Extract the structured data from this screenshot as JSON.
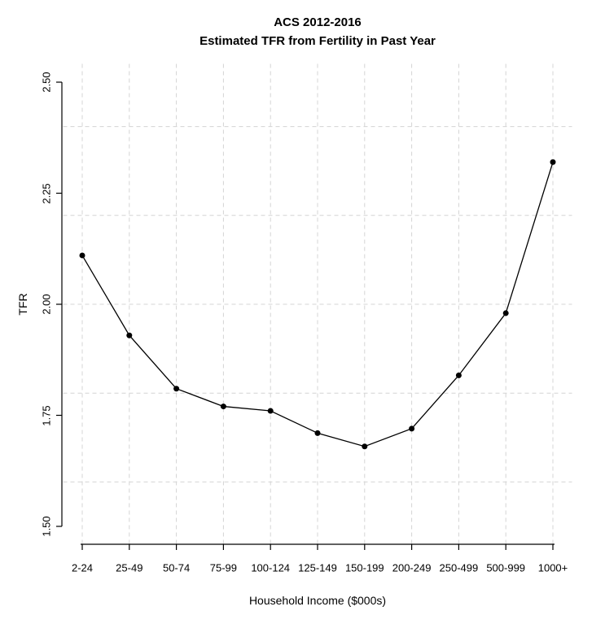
{
  "page": {
    "background_color": "#ffffff",
    "text_color": "#000000"
  },
  "chart_data": {
    "type": "line",
    "title": "ACS 2012-2016",
    "subtitle": "Estimated TFR from Fertility in Past Year",
    "xlabel": "Household Income ($000s)",
    "ylabel": "TFR",
    "categories": [
      "2-24",
      "25-49",
      "50-74",
      "75-99",
      "100-124",
      "125-149",
      "150-199",
      "200-249",
      "250-499",
      "500-999",
      "1000+"
    ],
    "values": [
      2.11,
      1.93,
      1.81,
      1.77,
      1.76,
      1.71,
      1.68,
      1.72,
      1.84,
      1.98,
      2.32
    ],
    "series_name": "Estimated TFR",
    "series_color": "#000000",
    "marker": "filled-circle",
    "ylim": [
      1.5,
      2.5
    ],
    "y_ticks": [
      {
        "label": "2.50",
        "value": 2.5
      },
      {
        "label": "2.25",
        "value": 2.25
      },
      {
        "label": "2.00",
        "value": 2.0
      },
      {
        "label": "1.75",
        "value": 1.75
      },
      {
        "label": "1.50",
        "value": 1.5
      }
    ],
    "grid": {
      "visible": true,
      "style": "dashed",
      "color": "#d4d4d4",
      "horizontal_line_values": [
        1.6,
        1.8,
        2.0,
        2.2,
        2.4
      ],
      "vertical_lines": "one per x category"
    },
    "legend": "none",
    "axis_color": "#000000"
  }
}
